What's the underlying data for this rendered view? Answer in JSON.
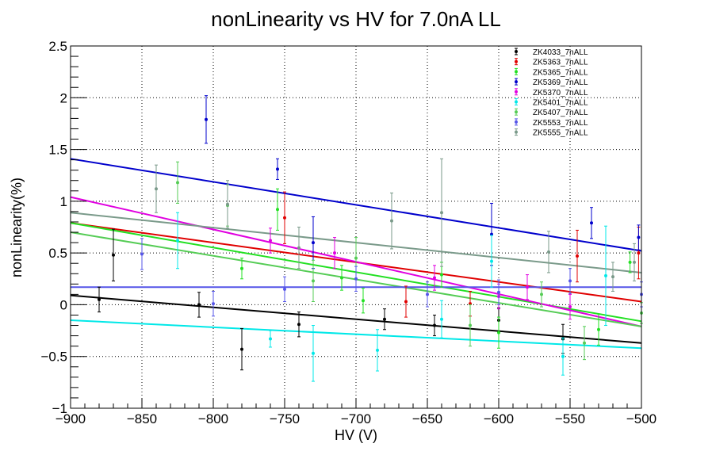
{
  "chart_data": {
    "type": "scatter",
    "title": "nonLinearity vs HV for 7.0nA LL",
    "xlabel": "HV (V)",
    "ylabel": "nonLinearity(%)",
    "xlim": [
      -900,
      -500
    ],
    "ylim": [
      -1,
      2.5
    ],
    "xticks": [
      -900,
      -850,
      -800,
      -750,
      -700,
      -650,
      -600,
      -550,
      -500
    ],
    "xtick_labels": [
      "−900",
      "−850",
      "−800",
      "−750",
      "−700",
      "−650",
      "−600",
      "−550",
      "−500"
    ],
    "yticks": [
      -1,
      -0.5,
      0,
      0.5,
      1,
      1.5,
      2,
      2.5
    ],
    "ytick_labels": [
      "−1",
      "−0.5",
      "0",
      "0.5",
      "1",
      "1.5",
      "2",
      "2.5"
    ],
    "grid": true,
    "legend_position": "top-right",
    "series": [
      {
        "name": "ZK4033_7nALL",
        "color": "#000000",
        "points": [
          [
            -880,
            0.05,
            0.12
          ],
          [
            -870,
            0.48,
            0.25
          ],
          [
            -810,
            0.0,
            0.12
          ],
          [
            -780,
            -0.43,
            0.2
          ],
          [
            -740,
            -0.19,
            0.12
          ],
          [
            -680,
            -0.14,
            0.1
          ],
          [
            -645,
            -0.2,
            0.1
          ],
          [
            -600,
            -0.15,
            0.12
          ],
          [
            -555,
            -0.33,
            0.14
          ]
        ],
        "fit": [
          [
            -900,
            0.09
          ],
          [
            -500,
            -0.37
          ]
        ]
      },
      {
        "name": "ZK5363_7nALL",
        "color": "#e00000",
        "points": [
          [
            -750,
            0.84,
            0.25
          ],
          [
            -665,
            0.03,
            0.15
          ],
          [
            -620,
            0.01,
            0.12
          ],
          [
            -545,
            0.47,
            0.25
          ],
          [
            -502,
            0.5,
            0.25
          ]
        ],
        "fit": [
          [
            -900,
            0.79
          ],
          [
            -500,
            0.03
          ]
        ]
      },
      {
        "name": "ZK5365_7nALL",
        "color": "#22e022",
        "points": [
          [
            -780,
            0.35,
            0.1
          ],
          [
            -755,
            0.92,
            0.2
          ],
          [
            -710,
            0.26,
            0.12
          ],
          [
            -695,
            0.04,
            0.12
          ],
          [
            -640,
            0.29,
            0.12
          ],
          [
            -600,
            -0.27,
            0.15
          ],
          [
            -530,
            -0.24,
            0.15
          ],
          [
            -508,
            0.41,
            0.1
          ]
        ],
        "fit": [
          [
            -900,
            0.79
          ],
          [
            -500,
            -0.16
          ]
        ]
      },
      {
        "name": "ZK5369_7nALL",
        "color": "#0000cc",
        "points": [
          [
            -805,
            1.79,
            0.23
          ],
          [
            -755,
            1.31,
            0.1
          ],
          [
            -730,
            0.6,
            0.25
          ],
          [
            -605,
            0.68,
            0.3
          ],
          [
            -535,
            0.79,
            0.15
          ],
          [
            -502,
            0.65,
            0.12
          ]
        ],
        "fit": [
          [
            -900,
            1.41
          ],
          [
            -500,
            0.52
          ]
        ]
      },
      {
        "name": "ZK5370_7nALL",
        "color": "#e000e0",
        "points": [
          [
            -760,
            0.62,
            0.12
          ],
          [
            -715,
            0.5,
            0.15
          ],
          [
            -645,
            0.26,
            0.12
          ],
          [
            -600,
            0.08,
            0.12
          ],
          [
            -580,
            0.17,
            0.12
          ],
          [
            -550,
            -0.02,
            0.12
          ]
        ],
        "fit": [
          [
            -900,
            1.04
          ],
          [
            -500,
            -0.21
          ]
        ]
      },
      {
        "name": "ZK5401_7nALL",
        "color": "#00e8e8",
        "points": [
          [
            -825,
            0.62,
            0.27
          ],
          [
            -760,
            -0.33,
            0.08
          ],
          [
            -730,
            -0.47,
            0.27
          ],
          [
            -685,
            -0.44,
            0.2
          ],
          [
            -640,
            -0.14,
            0.18
          ],
          [
            -605,
            0.42,
            0.25
          ],
          [
            -555,
            -0.5,
            0.18
          ],
          [
            -525,
            0.28,
            0.48
          ]
        ],
        "fit": [
          [
            -900,
            -0.15
          ],
          [
            -500,
            -0.42
          ]
        ]
      },
      {
        "name": "ZK5407_7nALL",
        "color": "#55cc55",
        "points": [
          [
            -825,
            1.18,
            0.2
          ],
          [
            -790,
            0.96,
            0.2
          ],
          [
            -730,
            0.23,
            0.2
          ],
          [
            -700,
            0.45,
            0.2
          ],
          [
            -620,
            -0.2,
            0.2
          ],
          [
            -570,
            0.1,
            0.12
          ],
          [
            -540,
            -0.37,
            0.16
          ],
          [
            -500,
            -0.08,
            0.1
          ]
        ],
        "fit": [
          [
            -900,
            0.7
          ],
          [
            -500,
            -0.21
          ]
        ]
      },
      {
        "name": "ZK5553_7nALL",
        "color": "#5555e8",
        "points": [
          [
            -850,
            0.49,
            0.15
          ],
          [
            -800,
            0.01,
            0.12
          ],
          [
            -750,
            0.15,
            0.12
          ],
          [
            -700,
            0.25,
            0.12
          ],
          [
            -650,
            0.1,
            0.12
          ],
          [
            -600,
            0.12,
            0.12
          ],
          [
            -550,
            0.23,
            0.12
          ],
          [
            -500,
            0.1,
            0.12
          ]
        ],
        "fit": [
          [
            -900,
            0.17
          ],
          [
            -500,
            0.17
          ]
        ]
      },
      {
        "name": "ZK5555_7nALL",
        "color": "#7a9a8a",
        "points": [
          [
            -840,
            1.12,
            0.23
          ],
          [
            -790,
            0.97,
            0.23
          ],
          [
            -740,
            0.55,
            0.2
          ],
          [
            -675,
            0.81,
            0.27
          ],
          [
            -640,
            0.89,
            0.52
          ],
          [
            -565,
            0.51,
            0.2
          ],
          [
            -520,
            0.27,
            0.14
          ],
          [
            -505,
            0.41,
            0.18
          ]
        ],
        "fit": [
          [
            -900,
            0.89
          ],
          [
            -500,
            0.31
          ]
        ]
      }
    ]
  }
}
